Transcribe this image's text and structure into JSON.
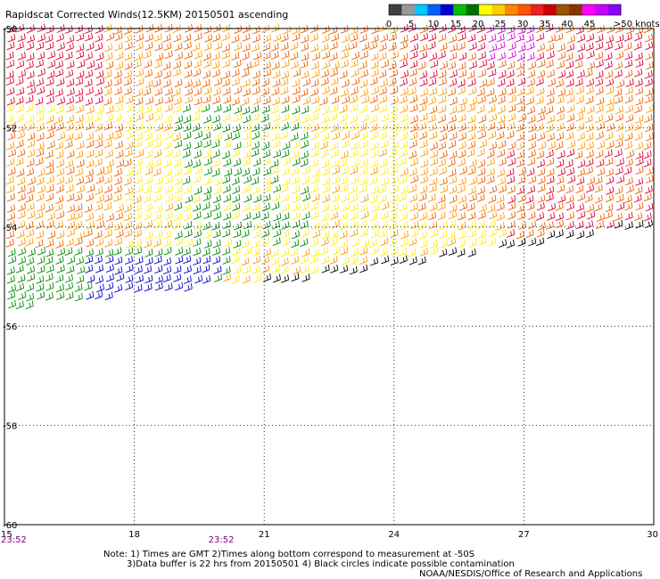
{
  "title": "Rapidscat Corrected Winds(12.5KM) 20150501 ascending",
  "legend": {
    "unit": "knots",
    "labels": [
      "0",
      "5",
      "10",
      "15",
      "20",
      "25",
      "30",
      "35",
      "40",
      "45",
      ">50 knots"
    ],
    "colors": [
      "#404040",
      "#999999",
      "#00c8ff",
      "#0060ff",
      "#0000cc",
      "#00c000",
      "#007000",
      "#ffff00",
      "#ffcc00",
      "#ff8800",
      "#ff5500",
      "#ee2020",
      "#cc0000",
      "#995500",
      "#883300",
      "#ff00ff",
      "#cc00ff",
      "#8800ff"
    ]
  },
  "map": {
    "lon_ticks": [
      "15",
      "18",
      "21",
      "24",
      "27",
      "30"
    ],
    "lat_ticks": [
      "-50",
      "-52",
      "-54",
      "-56",
      "-58",
      "-60"
    ],
    "lon_values": [
      15,
      18,
      21,
      24,
      27,
      30
    ],
    "lat_values": [
      -50,
      -52,
      -54,
      -56,
      -58,
      -60
    ],
    "lon_range": [
      15,
      30
    ],
    "lat_range": [
      -50,
      -60
    ],
    "grid": "dotted",
    "swath_times": [
      "23:52",
      "23:52"
    ],
    "swath_time_lons": [
      15,
      20
    ],
    "swath_time_color": "#800080"
  },
  "notes": {
    "line1": "Note: 1) Times are GMT 2)Times along bottom correspond to measurement at -50S",
    "line2": "3)Data buffer is 22 hrs from 20150501 4) Black circles indicate possible contamination",
    "credit": "NOAA/NESDIS/Office of Research and Applications"
  },
  "wind_colors": {
    "red": "#dd0030",
    "orange": "#ee6000",
    "light_orange": "#ff9900",
    "yellow": "#ffee00",
    "green": "#008800",
    "blue": "#0000cc",
    "black": "#000000",
    "magenta": "#dd00dd"
  }
}
